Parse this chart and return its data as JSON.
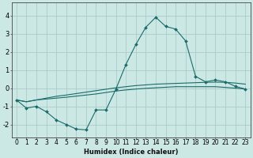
{
  "xlabel": "Humidex (Indice chaleur)",
  "bg_color": "#cce8e4",
  "grid_color": "#aaccc8",
  "line_color": "#1a6b6b",
  "xlim": [
    -0.5,
    23.5
  ],
  "ylim": [
    -2.7,
    4.7
  ],
  "xticks": [
    0,
    1,
    2,
    3,
    4,
    5,
    6,
    7,
    8,
    9,
    10,
    11,
    12,
    13,
    14,
    15,
    16,
    17,
    18,
    19,
    20,
    21,
    22,
    23
  ],
  "yticks": [
    -2,
    -1,
    0,
    1,
    2,
    3,
    4
  ],
  "line1_x": [
    0,
    1,
    2,
    3,
    4,
    5,
    6,
    7,
    8,
    9,
    10,
    11,
    12,
    13,
    14,
    15,
    16,
    17,
    18,
    19,
    20,
    21,
    22,
    23
  ],
  "line1_y": [
    -0.65,
    -1.1,
    -1.0,
    -1.3,
    -1.75,
    -2.0,
    -2.25,
    -2.3,
    -1.2,
    -1.2,
    -0.05,
    1.3,
    2.4,
    3.35,
    3.9,
    3.4,
    3.25,
    2.6,
    0.65,
    0.35,
    0.45,
    0.35,
    0.1,
    -0.05
  ],
  "line2_x": [
    0,
    1,
    2,
    3,
    4,
    5,
    6,
    7,
    8,
    9,
    10,
    11,
    12,
    13,
    14,
    15,
    16,
    17,
    18,
    19,
    20,
    21,
    22,
    23
  ],
  "line2_y": [
    -0.65,
    -0.75,
    -0.65,
    -0.55,
    -0.45,
    -0.38,
    -0.3,
    -0.22,
    -0.14,
    -0.06,
    0.02,
    0.08,
    0.14,
    0.18,
    0.22,
    0.24,
    0.26,
    0.28,
    0.3,
    0.32,
    0.33,
    0.32,
    0.28,
    0.22
  ],
  "line3_x": [
    0,
    1,
    2,
    3,
    4,
    5,
    6,
    7,
    8,
    9,
    10,
    11,
    12,
    13,
    14,
    15,
    16,
    17,
    18,
    19,
    20,
    21,
    22,
    23
  ],
  "line3_y": [
    -0.65,
    -0.75,
    -0.65,
    -0.6,
    -0.55,
    -0.5,
    -0.44,
    -0.38,
    -0.32,
    -0.24,
    -0.16,
    -0.1,
    -0.05,
    -0.01,
    0.02,
    0.05,
    0.08,
    0.08,
    0.08,
    0.08,
    0.08,
    0.04,
    0.0,
    -0.05
  ],
  "xlabel_fontsize": 6.0,
  "tick_fontsize": 5.5,
  "lw": 0.8,
  "ms": 2.0
}
